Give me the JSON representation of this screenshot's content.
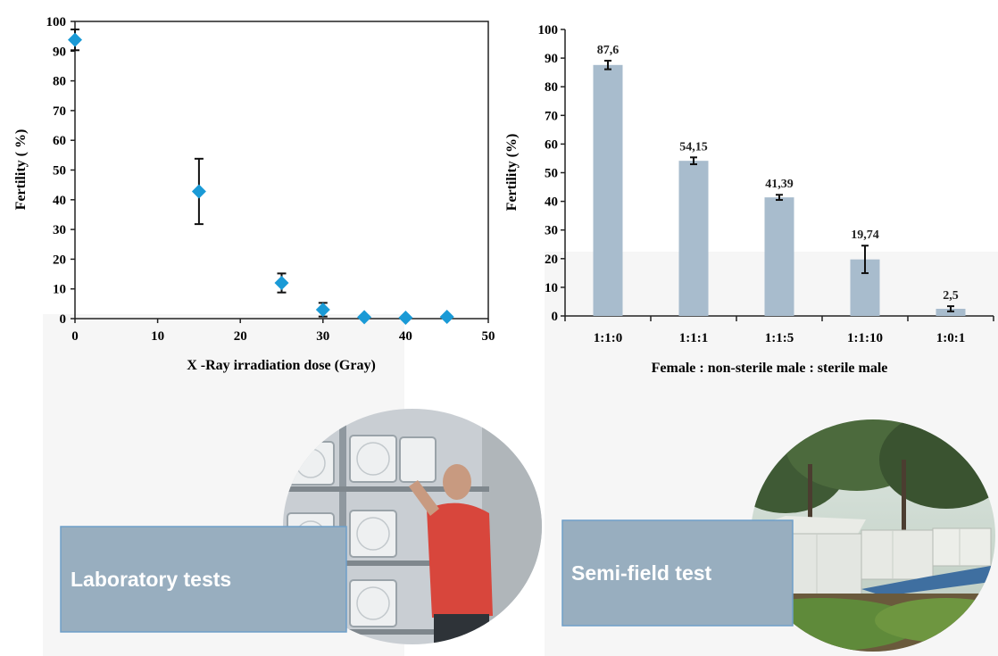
{
  "chart_data": [
    {
      "type": "scatter",
      "xlabel": "X -Ray irradiation dose (Gray)",
      "ylabel": "Fertility ( %)",
      "xlim": [
        0,
        50
      ],
      "ylim": [
        0,
        100
      ],
      "xticks": [
        "0",
        "10",
        "20",
        "30",
        "40",
        "50"
      ],
      "yticks": [
        "0",
        "10",
        "20",
        "30",
        "40",
        "50",
        "60",
        "70",
        "80",
        "90",
        "100"
      ],
      "points": [
        {
          "x": 0,
          "y": 93.8,
          "err": 3.5
        },
        {
          "x": 15,
          "y": 42.8,
          "err": 11.0
        },
        {
          "x": 25,
          "y": 12.0,
          "err": 3.2
        },
        {
          "x": 30,
          "y": 3.0,
          "err": 2.3
        },
        {
          "x": 35,
          "y": 0.5,
          "err": 0
        },
        {
          "x": 40,
          "y": 0.3,
          "err": 0
        },
        {
          "x": 45,
          "y": 0.6,
          "err": 0
        }
      ],
      "marker_color": "#1a9ad6",
      "grid": false
    },
    {
      "type": "bar",
      "xlabel": "Female : non-sterile male : sterile male",
      "ylabel": "Fertility (%)",
      "ylim": [
        0,
        100
      ],
      "yticks": [
        "0",
        "10",
        "20",
        "30",
        "40",
        "50",
        "60",
        "70",
        "80",
        "90",
        "100"
      ],
      "categories": [
        "1:1:0",
        "1:1:1",
        "1:1:5",
        "1:1:10",
        "1:0:1"
      ],
      "values": [
        87.6,
        54.15,
        41.39,
        19.74,
        2.5
      ],
      "value_labels": [
        "87,6",
        "54,15",
        "41,39",
        "19,74",
        "2,5"
      ],
      "errors": [
        1.5,
        1.2,
        0.9,
        4.8,
        0.9
      ],
      "bar_color": "#a8bccd",
      "grid": false
    }
  ],
  "photos": [
    {
      "caption": "Laboratory tests",
      "icon": "laboratory-photo"
    },
    {
      "caption": "Semi-field test",
      "icon": "semi-field-cage-photo"
    }
  ],
  "colors": {
    "caption_box_fill": "#98aebf",
    "caption_box_border": "#6f9fc9",
    "panel_bg": "#f6f6f6"
  }
}
